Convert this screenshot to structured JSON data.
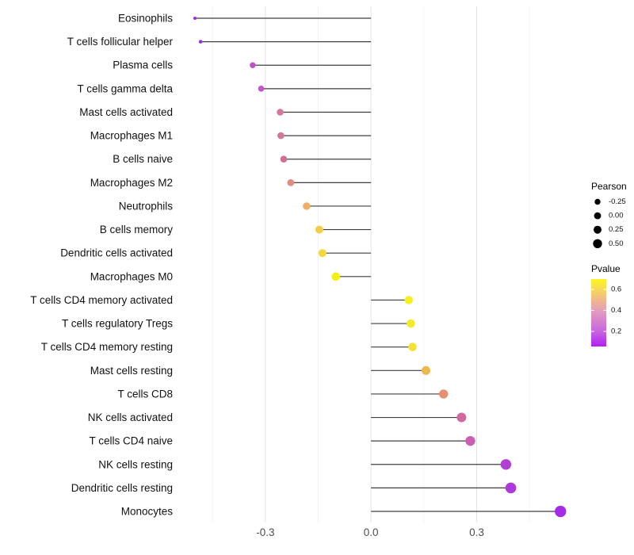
{
  "chart_data": {
    "type": "lollipop",
    "orientation": "horizontal",
    "title": "",
    "xlabel": "",
    "ylabel": "",
    "xlim": [
      -0.545,
      0.56
    ],
    "x_major_ticks": [
      {
        "label": "-0.3",
        "value": -0.3
      },
      {
        "label": "0.0",
        "value": 0.0
      },
      {
        "label": "0.3",
        "value": 0.3
      }
    ],
    "x_minor_gridlines": [
      -0.45,
      -0.15,
      0.15,
      0.45
    ],
    "grid": "on",
    "baseline_value": 0.0,
    "rows": [
      {
        "label": "Eosinophils",
        "pearson": -0.5,
        "dot_color": "#9A2CE6",
        "radius": 2.0
      },
      {
        "label": "T cells follicular helper",
        "pearson": -0.484,
        "dot_color": "#9431E2",
        "radius": 2.3
      },
      {
        "label": "Plasma cells",
        "pearson": -0.336,
        "dot_color": "#C04FC9",
        "radius": 3.7
      },
      {
        "label": "T cells gamma delta",
        "pearson": -0.312,
        "dot_color": "#C355C4",
        "radius": 3.8
      },
      {
        "label": "Mast cells activated",
        "pearson": -0.258,
        "dot_color": "#D4799C",
        "radius": 4.3
      },
      {
        "label": "Macrophages M1",
        "pearson": -0.256,
        "dot_color": "#D27795",
        "radius": 4.3
      },
      {
        "label": "B cells naive",
        "pearson": -0.248,
        "dot_color": "#D0708F",
        "radius": 4.3
      },
      {
        "label": "Macrophages M2",
        "pearson": -0.228,
        "dot_color": "#E08B84",
        "radius": 4.4
      },
      {
        "label": "Neutrophils",
        "pearson": -0.183,
        "dot_color": "#EEAD62",
        "radius": 4.7
      },
      {
        "label": "B cells memory",
        "pearson": -0.147,
        "dot_color": "#F2CE4B",
        "radius": 5.0
      },
      {
        "label": "Dendritic cells activated",
        "pearson": -0.138,
        "dot_color": "#F3D83C",
        "radius": 5.0
      },
      {
        "label": "Macrophages M0",
        "pearson": -0.1,
        "dot_color": "#F4F112",
        "radius": 5.3
      },
      {
        "label": "T cells CD4 memory activated",
        "pearson": 0.107,
        "dot_color": "#F6F01C",
        "radius": 5.2
      },
      {
        "label": "T cells regulatory  Tregs",
        "pearson": 0.113,
        "dot_color": "#F5EA2A",
        "radius": 5.3
      },
      {
        "label": "T cells CD4 memory resting",
        "pearson": 0.118,
        "dot_color": "#F4E233",
        "radius": 5.3
      },
      {
        "label": "Mast cells resting",
        "pearson": 0.156,
        "dot_color": "#ECB94E",
        "radius": 5.5
      },
      {
        "label": "T cells CD8",
        "pearson": 0.206,
        "dot_color": "#E78F73",
        "radius": 5.7
      },
      {
        "label": "NK cells activated",
        "pearson": 0.257,
        "dot_color": "#D2689F",
        "radius": 6.0
      },
      {
        "label": "T cells CD4 naive",
        "pearson": 0.282,
        "dot_color": "#C95FB3",
        "radius": 6.2
      },
      {
        "label": "NK cells resting",
        "pearson": 0.383,
        "dot_color": "#B140D2",
        "radius": 6.7
      },
      {
        "label": "Dendritic cells resting",
        "pearson": 0.397,
        "dot_color": "#AC3ADA",
        "radius": 6.8
      },
      {
        "label": "Monocytes",
        "pearson": 0.538,
        "dot_color": "#A42BE8",
        "radius": 7.2
      }
    ],
    "legend_size": {
      "title": "Pearson",
      "entries": [
        {
          "label": "-0.25",
          "r": 3.7
        },
        {
          "label": "0.00",
          "r": 4.4
        },
        {
          "label": "0.25",
          "r": 5.0
        },
        {
          "label": "0.50",
          "r": 5.7
        }
      ],
      "swatch_color": "#000000"
    },
    "legend_color": {
      "title": "Pvalue",
      "ticks": [
        {
          "label": "0.6",
          "t": 0.153
        },
        {
          "label": "0.4",
          "t": 0.465
        },
        {
          "label": "0.2",
          "t": 0.776
        }
      ],
      "gradient_stops": [
        {
          "offset": 0.0,
          "color": "#FCF61F"
        },
        {
          "offset": 0.15,
          "color": "#F7DA55"
        },
        {
          "offset": 0.32,
          "color": "#F0B48F"
        },
        {
          "offset": 0.47,
          "color": "#E49DBC"
        },
        {
          "offset": 0.63,
          "color": "#D480D0"
        },
        {
          "offset": 0.78,
          "color": "#C564E0"
        },
        {
          "offset": 1.0,
          "color": "#B21FF2"
        }
      ]
    },
    "colors": {
      "stem": "#3F3F3F",
      "grid_major": "#E4E4E4",
      "grid_minor": "#F0F0F0",
      "axis_text": "#4D4D4D",
      "label_text": "#111111",
      "legend_text": "#111111",
      "background": "#FFFFFF"
    }
  }
}
